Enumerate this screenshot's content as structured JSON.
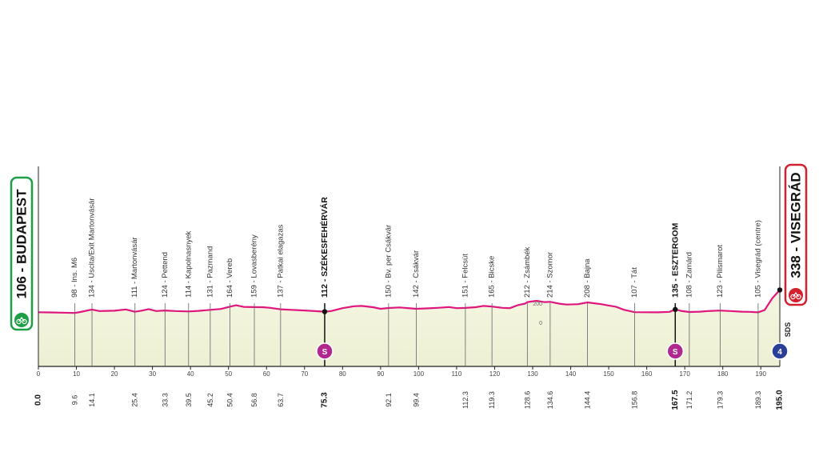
{
  "chart_data": {
    "type": "area",
    "xlim": [
      0,
      195
    ],
    "ylim": [
      0,
      400
    ],
    "x_ticks": [
      0,
      10,
      20,
      30,
      40,
      50,
      60,
      70,
      80,
      90,
      100,
      110,
      120,
      130,
      140,
      150,
      160,
      170,
      180,
      190
    ],
    "altitude_scale_labels": [
      {
        "value": 200,
        "label": "200"
      },
      {
        "value": 0,
        "label": "0"
      }
    ],
    "start": {
      "name": "106 - BUDAPEST",
      "km": 0,
      "km_label": "0.0",
      "altitude": 106
    },
    "finish": {
      "name": "338 - VISEGRÁD",
      "km": 195,
      "km_label": "195.0",
      "altitude": 338
    },
    "sprints": [
      {
        "km": 75.3,
        "label": "S"
      },
      {
        "km": 167.5,
        "label": "S"
      }
    ],
    "finish_category": "4",
    "sponsor_mark": "SDS",
    "waypoints": [
      {
        "km": 9.6,
        "km_label": "9.6",
        "label": "98 - Ins. M6",
        "altitude": 98,
        "bold": false
      },
      {
        "km": 14.1,
        "km_label": "14.1",
        "label": "134 - Uscita/Exit Martonvásár",
        "altitude": 134,
        "bold": false
      },
      {
        "km": 25.4,
        "km_label": "25.4",
        "label": "111 - Martonvásár",
        "altitude": 111,
        "bold": false
      },
      {
        "km": 33.3,
        "km_label": "33.3",
        "label": "124 - Pettend",
        "altitude": 124,
        "bold": false
      },
      {
        "km": 39.5,
        "km_label": "39.5",
        "label": "114 - Kapolnasnyek",
        "altitude": 114,
        "bold": false
      },
      {
        "km": 45.2,
        "km_label": "45.2",
        "label": "131 - Pazmand",
        "altitude": 131,
        "bold": false
      },
      {
        "km": 50.4,
        "km_label": "50.4",
        "label": "164 - Vereb",
        "altitude": 164,
        "bold": false
      },
      {
        "km": 56.8,
        "km_label": "56.8",
        "label": "159 - Lovasberény",
        "altitude": 159,
        "bold": false
      },
      {
        "km": 63.7,
        "km_label": "63.7",
        "label": "137 - Patkai elagazas",
        "altitude": 137,
        "bold": false
      },
      {
        "km": 75.3,
        "km_label": "75.3",
        "label": "112 - SZÉKESFEHÉRVÁR",
        "altitude": 112,
        "bold": true
      },
      {
        "km": 92.1,
        "km_label": "92.1",
        "label": "150 - Bv. per Csákvár",
        "altitude": 150,
        "bold": false
      },
      {
        "km": 99.4,
        "km_label": "99.4",
        "label": "142 - Csákvár",
        "altitude": 142,
        "bold": false
      },
      {
        "km": 112.3,
        "km_label": "112.3",
        "label": "151 - Felcsút",
        "altitude": 151,
        "bold": false
      },
      {
        "km": 119.3,
        "km_label": "119.3",
        "label": "165 - Bicske",
        "altitude": 165,
        "bold": false
      },
      {
        "km": 128.6,
        "km_label": "128.6",
        "label": "212 - Zsámbék",
        "altitude": 212,
        "bold": false
      },
      {
        "km": 134.6,
        "km_label": "134.6",
        "label": "214 - Szomor",
        "altitude": 214,
        "bold": false
      },
      {
        "km": 144.4,
        "km_label": "144.4",
        "label": "208 - Bajna",
        "altitude": 208,
        "bold": false
      },
      {
        "km": 156.8,
        "km_label": "156.8",
        "label": "107 - Tát",
        "altitude": 107,
        "bold": false
      },
      {
        "km": 167.5,
        "km_label": "167.5",
        "label": "135 - ESZTERGOM",
        "altitude": 135,
        "bold": true
      },
      {
        "km": 171.2,
        "km_label": "171.2",
        "label": "108 - Zamárd",
        "altitude": 108,
        "bold": false
      },
      {
        "km": 179.3,
        "km_label": "179.3",
        "label": "123 - Pilismarot",
        "altitude": 123,
        "bold": false
      },
      {
        "km": 189.3,
        "km_label": "189.3",
        "label": "105 - Visegrád (centre)",
        "altitude": 105,
        "bold": false
      }
    ],
    "profile": [
      [
        0,
        106
      ],
      [
        3,
        104
      ],
      [
        6,
        102
      ],
      [
        9.6,
        98
      ],
      [
        11,
        108
      ],
      [
        14.1,
        134
      ],
      [
        16,
        118
      ],
      [
        20,
        122
      ],
      [
        23,
        135
      ],
      [
        25.4,
        111
      ],
      [
        27,
        122
      ],
      [
        29,
        138
      ],
      [
        31,
        118
      ],
      [
        33.3,
        124
      ],
      [
        36,
        118
      ],
      [
        39.5,
        114
      ],
      [
        42,
        120
      ],
      [
        45.2,
        131
      ],
      [
        48,
        140
      ],
      [
        50.4,
        164
      ],
      [
        52,
        178
      ],
      [
        54,
        162
      ],
      [
        56.8,
        159
      ],
      [
        59,
        158
      ],
      [
        61,
        152
      ],
      [
        63.7,
        137
      ],
      [
        66,
        132
      ],
      [
        69,
        126
      ],
      [
        72,
        120
      ],
      [
        75.3,
        112
      ],
      [
        77,
        118
      ],
      [
        80,
        148
      ],
      [
        83,
        168
      ],
      [
        85,
        172
      ],
      [
        88,
        158
      ],
      [
        90,
        142
      ],
      [
        92.1,
        150
      ],
      [
        95,
        156
      ],
      [
        99.4,
        142
      ],
      [
        102,
        146
      ],
      [
        105,
        152
      ],
      [
        108,
        160
      ],
      [
        110,
        148
      ],
      [
        112.3,
        151
      ],
      [
        115,
        158
      ],
      [
        117,
        172
      ],
      [
        119.3,
        165
      ],
      [
        122,
        152
      ],
      [
        124,
        148
      ],
      [
        126,
        178
      ],
      [
        128,
        196
      ],
      [
        128.6,
        212
      ],
      [
        131,
        225
      ],
      [
        133,
        212
      ],
      [
        134.6,
        214
      ],
      [
        137,
        195
      ],
      [
        139,
        186
      ],
      [
        142,
        190
      ],
      [
        144.4,
        208
      ],
      [
        146,
        200
      ],
      [
        148,
        190
      ],
      [
        150,
        176
      ],
      [
        152,
        162
      ],
      [
        154,
        132
      ],
      [
        156.8,
        107
      ],
      [
        160,
        106
      ],
      [
        163,
        105
      ],
      [
        166,
        110
      ],
      [
        167.5,
        135
      ],
      [
        169,
        120
      ],
      [
        171.2,
        108
      ],
      [
        174,
        112
      ],
      [
        176,
        118
      ],
      [
        179.3,
        123
      ],
      [
        182,
        118
      ],
      [
        185,
        112
      ],
      [
        187,
        110
      ],
      [
        189.3,
        105
      ],
      [
        191,
        128
      ],
      [
        193,
        250
      ],
      [
        195,
        338
      ]
    ]
  }
}
